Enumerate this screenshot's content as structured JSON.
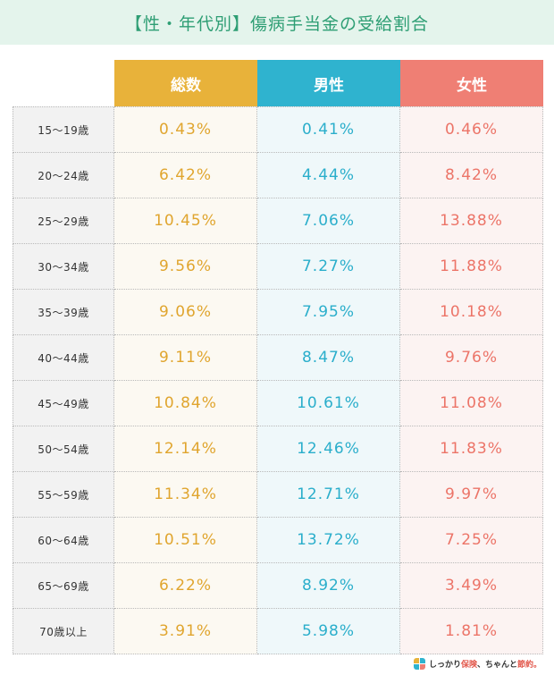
{
  "title": "【性・年代別】傷病手当金の受給割合",
  "headers": {
    "total": "総数",
    "male": "男性",
    "female": "女性"
  },
  "rows": [
    {
      "age": "15～19歳",
      "total": "0.43%",
      "male": "0.41%",
      "female": "0.46%"
    },
    {
      "age": "20～24歳",
      "total": "6.42%",
      "male": "4.44%",
      "female": "8.42%"
    },
    {
      "age": "25～29歳",
      "total": "10.45%",
      "male": "7.06%",
      "female": "13.88%"
    },
    {
      "age": "30～34歳",
      "total": "9.56%",
      "male": "7.27%",
      "female": "11.88%"
    },
    {
      "age": "35～39歳",
      "total": "9.06%",
      "male": "7.95%",
      "female": "10.18%"
    },
    {
      "age": "40～44歳",
      "total": "9.11%",
      "male": "8.47%",
      "female": "9.76%"
    },
    {
      "age": "45～49歳",
      "total": "10.84%",
      "male": "10.61%",
      "female": "11.08%"
    },
    {
      "age": "50～54歳",
      "total": "12.14%",
      "male": "12.46%",
      "female": "11.83%"
    },
    {
      "age": "55～59歳",
      "total": "11.34%",
      "male": "12.71%",
      "female": "9.97%"
    },
    {
      "age": "60～64歳",
      "total": "10.51%",
      "male": "13.72%",
      "female": "7.25%"
    },
    {
      "age": "65～69歳",
      "total": "6.22%",
      "male": "8.92%",
      "female": "3.49%"
    },
    {
      "age": "70歳以上",
      "total": "3.91%",
      "male": "5.98%",
      "female": "1.81%"
    }
  ],
  "logo": {
    "part1": "しっかり",
    "part2": "保険",
    "part3": "、ちゃんと",
    "part4": "節約。",
    "icon": "brand-logo-icon"
  },
  "colors": {
    "total": "#e8b23a",
    "male": "#2fb3cf",
    "female": "#ef7f74",
    "title": "#2e9e74"
  }
}
